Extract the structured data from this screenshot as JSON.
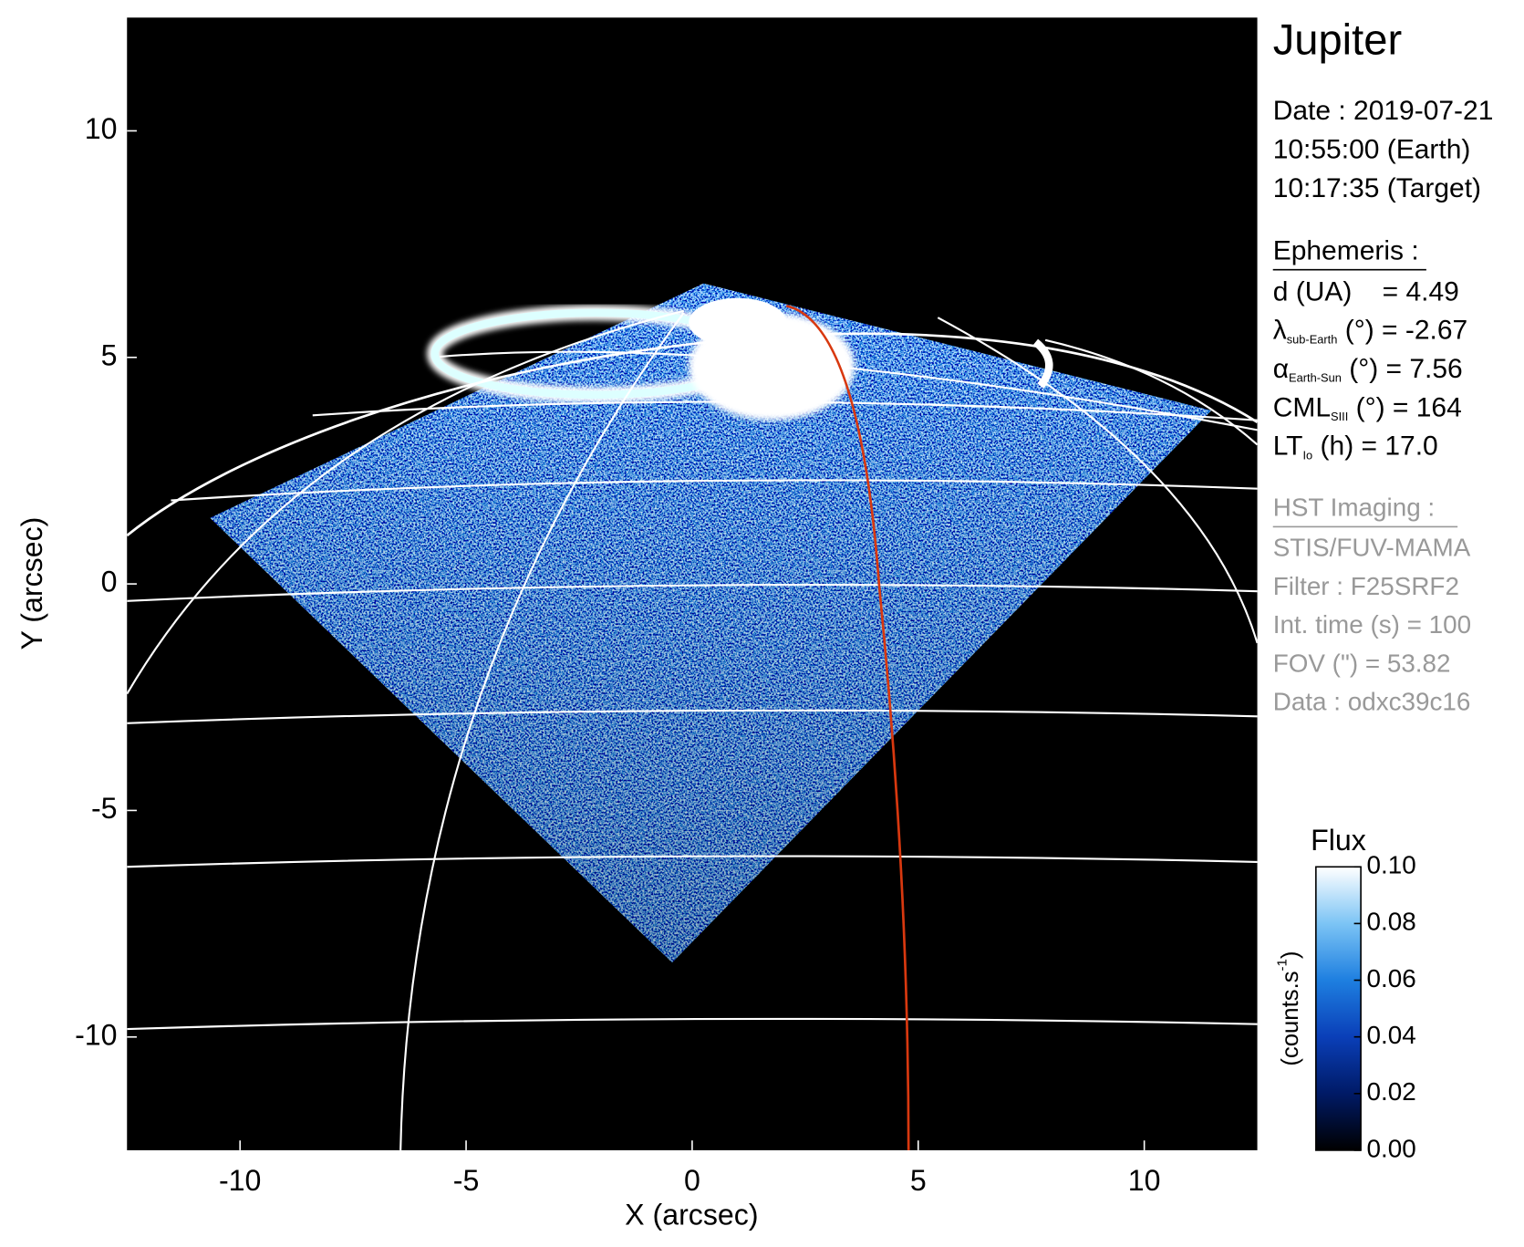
{
  "chart_data": {
    "type": "image",
    "xlabel": "X (arcsec)",
    "ylabel": "Y (arcsec)",
    "xlim": [
      -12.5,
      12.5
    ],
    "ylim": [
      -12.5,
      12.5
    ],
    "xticks": [
      -10,
      -5,
      0,
      5,
      10
    ],
    "yticks": [
      -10,
      -5,
      0,
      5,
      10
    ],
    "colorbar": {
      "title": "Flux",
      "unit": "(counts.s",
      "unit_sup": "-1",
      "unit_end": ")",
      "lim": [
        0,
        0.1
      ],
      "ticks": [
        {
          "value": 0,
          "label": "0.00"
        },
        {
          "value": 0.02,
          "label": "0.02"
        },
        {
          "value": 0.04,
          "label": "0.04"
        },
        {
          "value": 0.06,
          "label": "0.06"
        },
        {
          "value": 0.08,
          "label": "0.08"
        },
        {
          "value": 0.1,
          "label": "0.10"
        }
      ],
      "colors": [
        "#000000",
        "#001a66",
        "#0a3fb8",
        "#1e7fe0",
        "#7cc4f5",
        "#ffffff"
      ]
    }
  },
  "info": {
    "title": "Jupiter",
    "date_lines": [
      "Date : 2019-07-21",
      "10:55:00 (Earth)",
      "10:17:35 (Target)"
    ],
    "ephemeris": {
      "heading": "Ephemeris :",
      "lines": [
        {
          "main": "d (UA)    = 4.49"
        },
        {
          "main": "λ",
          "sub": "sub-Earth",
          "rest": " (°) = -2.67"
        },
        {
          "main": "α",
          "sub": "Earth-Sun",
          "rest": " (°) = 7.56"
        },
        {
          "main": "CML",
          "sub": "SIII",
          "rest": " (°) = 164"
        },
        {
          "main": "LT",
          "sub": "Io",
          "rest": " (h) = 17.0"
        }
      ]
    },
    "imaging": {
      "heading": "HST Imaging :",
      "lines": [
        "STIS/FUV-MAMA",
        "Filter : F25SRF2",
        "Int. time (s) = 100",
        "FOV (\") = 53.82",
        "Data : odxc39c16"
      ]
    }
  }
}
